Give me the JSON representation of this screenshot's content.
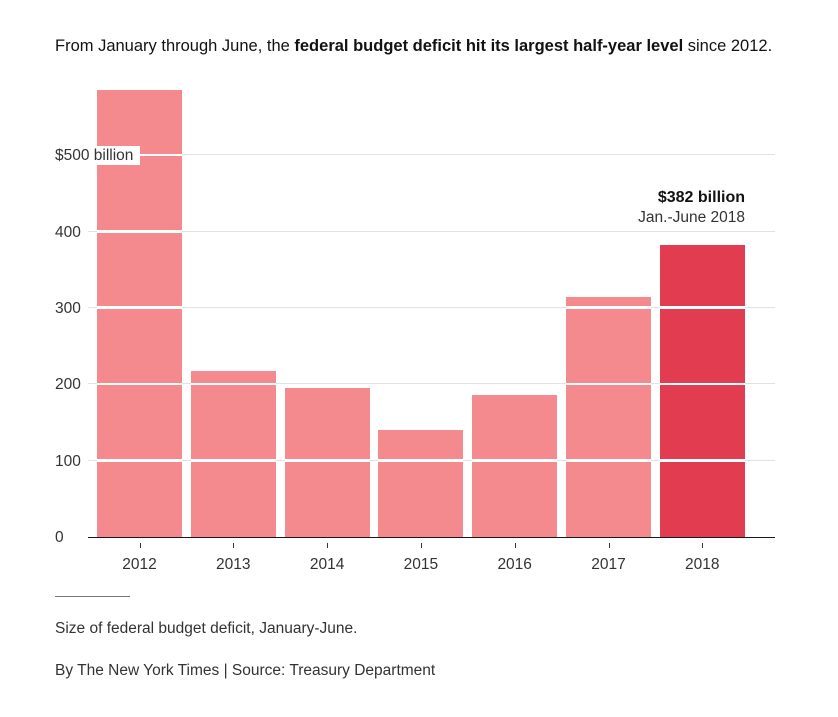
{
  "header": {
    "prefix": "From January through June, the ",
    "bold": "federal budget deficit hit its largest half-year level",
    "suffix": " since 2012."
  },
  "chart_data": {
    "type": "bar",
    "title": "Size of federal budget deficit, January-June.",
    "categories": [
      "2012",
      "2013",
      "2014",
      "2015",
      "2016",
      "2017",
      "2018"
    ],
    "values": [
      585,
      218,
      195,
      140,
      186,
      314,
      382
    ],
    "unit": "billions of dollars",
    "ylim": [
      0,
      615
    ],
    "yticks": [
      0,
      100,
      200,
      300,
      400,
      500
    ],
    "ytick_labels": [
      "0",
      "100",
      "200",
      "300",
      "400",
      "$500 billion"
    ],
    "grid": true,
    "legend": "none",
    "bar_color": "#f4898e",
    "highlight_color": "#e23c50",
    "highlight_index": 6,
    "annotation": {
      "value": "$382 billion",
      "label": "Jan.-June 2018"
    }
  },
  "footer": {
    "caption": "Size of federal budget deficit, January-June.",
    "byline": "By The New York Times | Source: Treasury Department"
  }
}
